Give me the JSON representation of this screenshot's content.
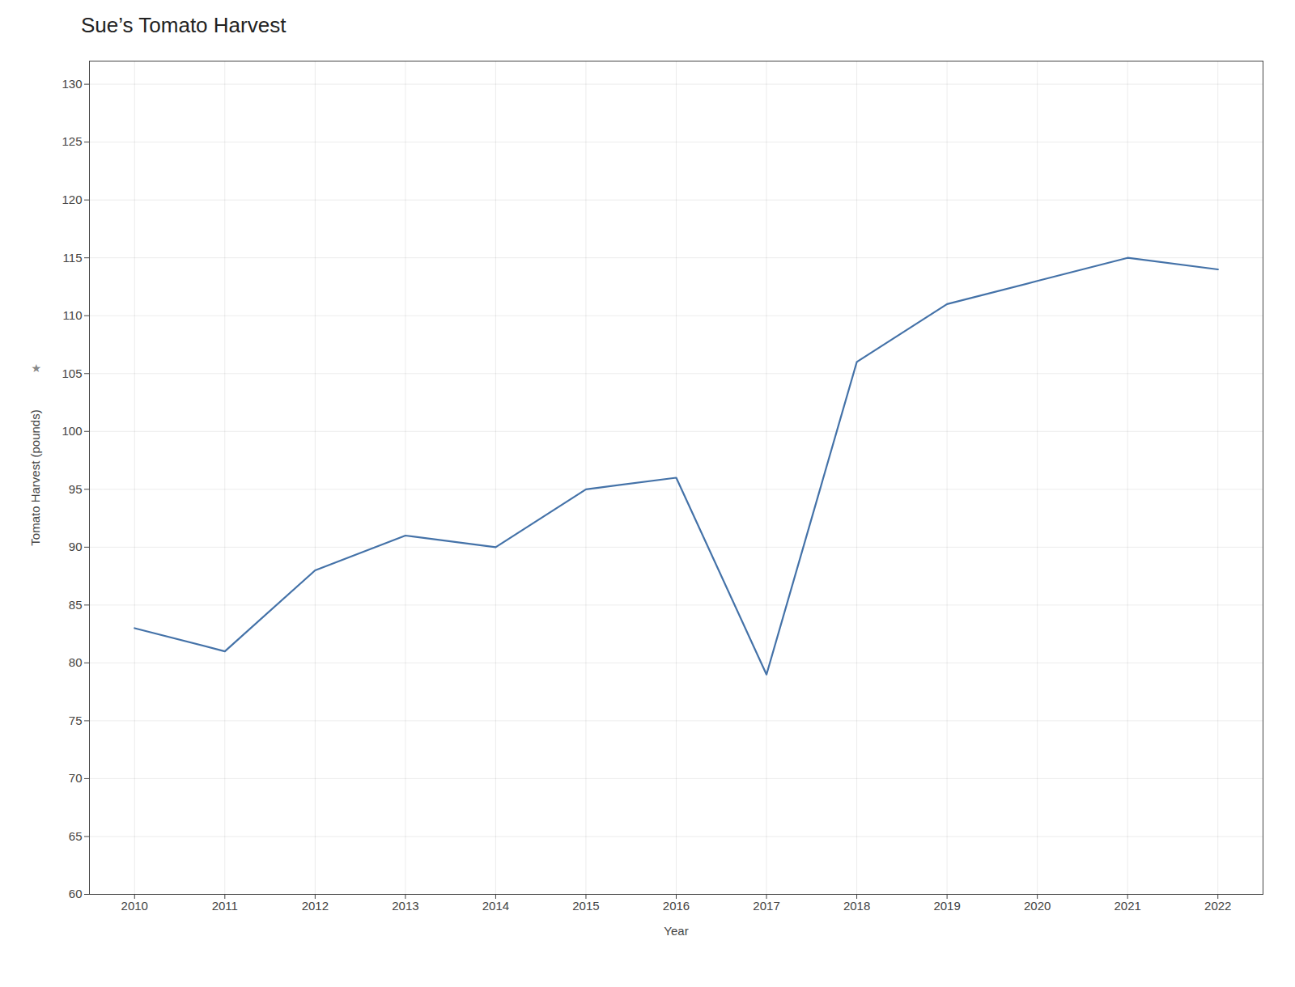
{
  "chart_data": {
    "type": "line",
    "title": "Sue’s Tomato Harvest",
    "xlabel": "Year",
    "ylabel": "Tomato Harvest (pounds)",
    "x": [
      2010,
      2011,
      2012,
      2013,
      2014,
      2015,
      2016,
      2017,
      2018,
      2019,
      2020,
      2021,
      2022
    ],
    "values": [
      83,
      81,
      88,
      91,
      90,
      95,
      96,
      79,
      106,
      111,
      113,
      115,
      114
    ],
    "color": "#4472a8",
    "xlim": [
      2009.5,
      2022.5
    ],
    "xticks": [
      2010,
      2011,
      2012,
      2013,
      2014,
      2015,
      2016,
      2017,
      2018,
      2019,
      2020,
      2021,
      2022
    ],
    "ylim": [
      60,
      132
    ],
    "yticks": [
      60,
      65,
      70,
      75,
      80,
      85,
      90,
      95,
      100,
      105,
      110,
      115,
      120,
      125,
      130
    ],
    "grid": true,
    "annotations": [
      "★"
    ]
  }
}
